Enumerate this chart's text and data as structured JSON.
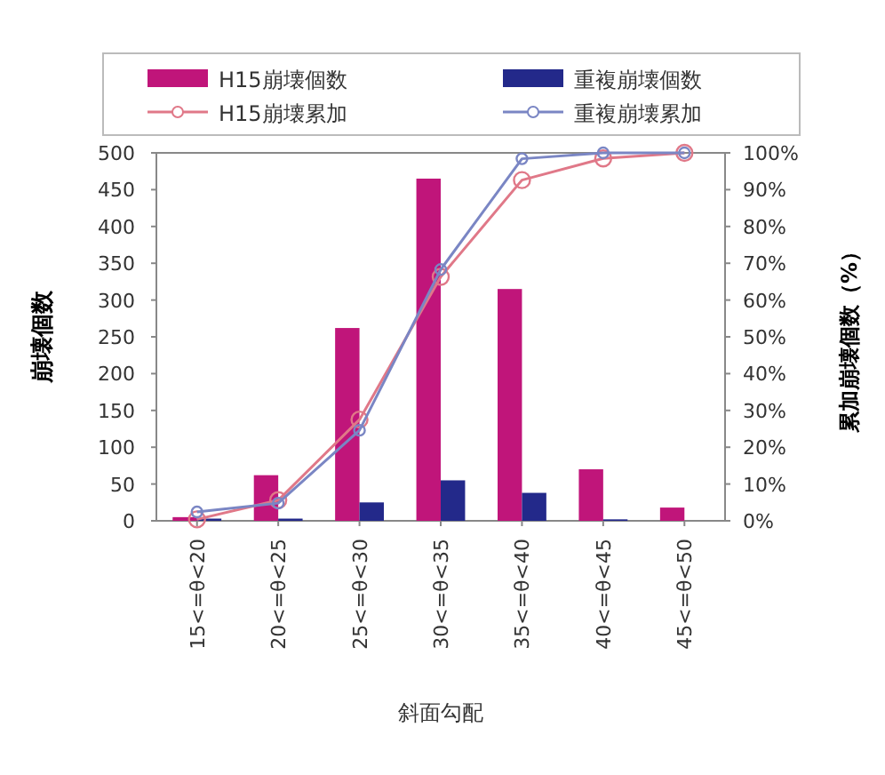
{
  "chart_data": {
    "type": "bar",
    "xlabel": "斜面勾配",
    "ylabel": "崩壊個数",
    "y2label": "累加崩壊個数（%）",
    "categories": [
      "15<=θ<20",
      "20<=θ<25",
      "25<=θ<30",
      "30<=θ<35",
      "35<=θ<40",
      "40<=θ<45",
      "45<=θ<50"
    ],
    "series": [
      {
        "name": "H15崩壊個数",
        "color": "#c0157a",
        "values": [
          5,
          62,
          262,
          465,
          315,
          70,
          18
        ]
      },
      {
        "name": "重複崩壊個数",
        "color": "#23298a",
        "values": [
          3,
          3,
          25,
          55,
          38,
          2,
          0
        ]
      },
      {
        "name": "H15崩壊累加",
        "type": "line",
        "axis": "y2",
        "color": "#e07888",
        "values": [
          0.4,
          5.6,
          27.5,
          66.3,
          92.6,
          98.5,
          100
        ]
      },
      {
        "name": "重複崩壊累加",
        "type": "line",
        "axis": "y2",
        "color": "#7a86c4",
        "values": [
          2.4,
          4.8,
          24.6,
          68.3,
          98.4,
          100,
          100
        ]
      }
    ],
    "ylim": [
      0,
      500
    ],
    "yticks": [
      0,
      50,
      100,
      150,
      200,
      250,
      300,
      350,
      400,
      450,
      500
    ],
    "y2lim": [
      0,
      100
    ],
    "y2ticks": [
      {
        "value": 0,
        "label": "0%"
      },
      {
        "value": 10,
        "label": "10%"
      },
      {
        "value": 20,
        "label": "20%"
      },
      {
        "value": 30,
        "label": "30%"
      },
      {
        "value": 40,
        "label": "40%"
      },
      {
        "value": 50,
        "label": "50%"
      },
      {
        "value": 60,
        "label": "60%"
      },
      {
        "value": 70,
        "label": "70%"
      },
      {
        "value": 80,
        "label": "80%"
      },
      {
        "value": 90,
        "label": "90%"
      },
      {
        "value": 100,
        "label": "100%"
      }
    ],
    "legend": "top",
    "marker": "circle"
  }
}
